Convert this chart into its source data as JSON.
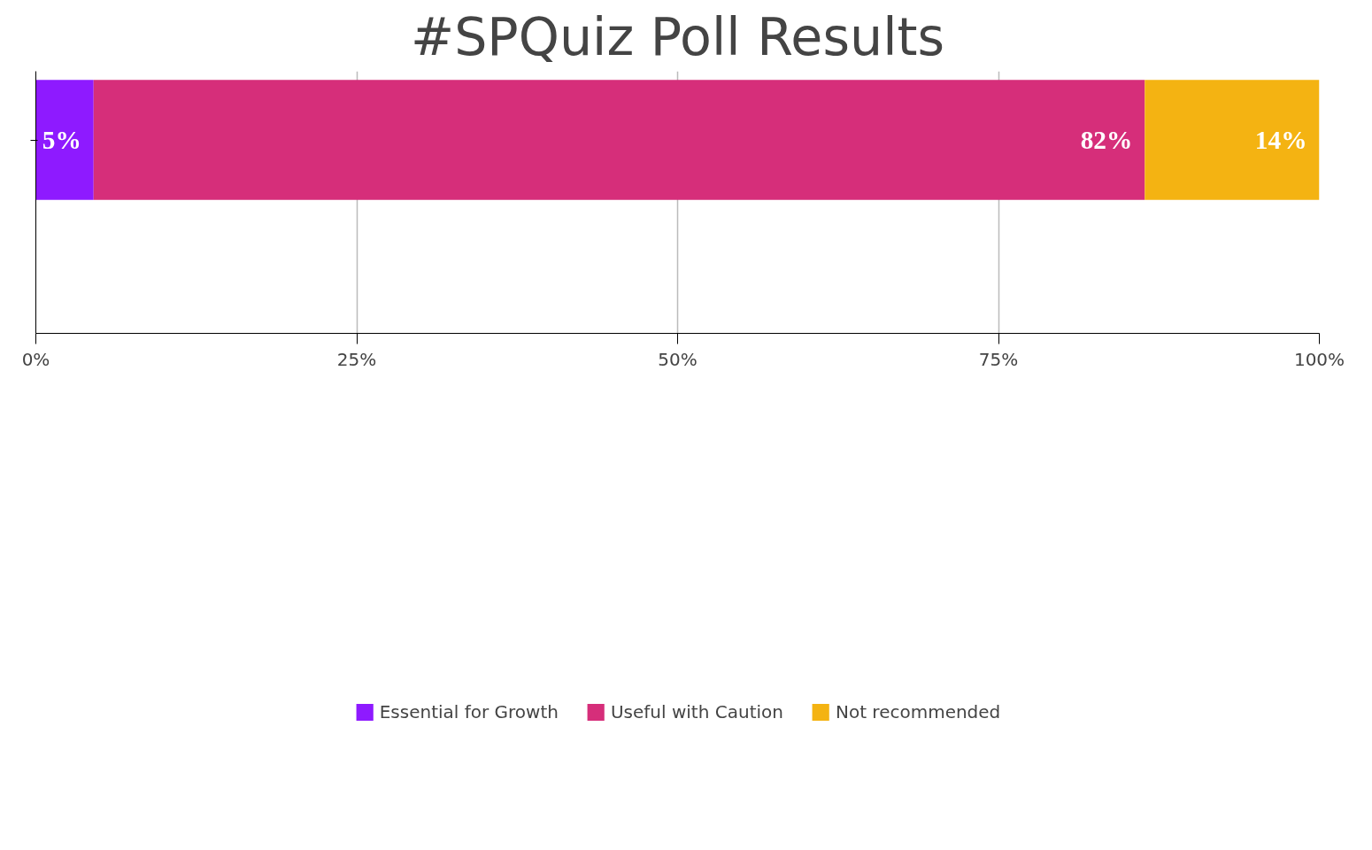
{
  "chart_data": {
    "type": "bar",
    "orientation": "horizontal",
    "stacked": true,
    "title": "#SPQuiz Poll Results",
    "categories": [
      null
    ],
    "series": [
      {
        "name": "Essential for Growth",
        "color": "#8e1aff",
        "values": [
          4.5
        ],
        "value_labels": [
          "5%"
        ]
      },
      {
        "name": "Useful with Caution",
        "color": "#d62e7a",
        "values": [
          81.9
        ],
        "value_labels": [
          "82%"
        ]
      },
      {
        "name": "Not recommended",
        "color": "#f4b312",
        "values": [
          13.6
        ],
        "value_labels": [
          "14%"
        ]
      }
    ],
    "xlim": [
      0,
      100
    ],
    "xticks": [
      {
        "value": 0,
        "label": "0%"
      },
      {
        "value": 25,
        "label": "25%"
      },
      {
        "value": 50,
        "label": "50%"
      },
      {
        "value": 75,
        "label": "75%"
      },
      {
        "value": 100,
        "label": "100%"
      }
    ],
    "grid": "x",
    "legend": "bottom",
    "tick_labels": "x"
  }
}
